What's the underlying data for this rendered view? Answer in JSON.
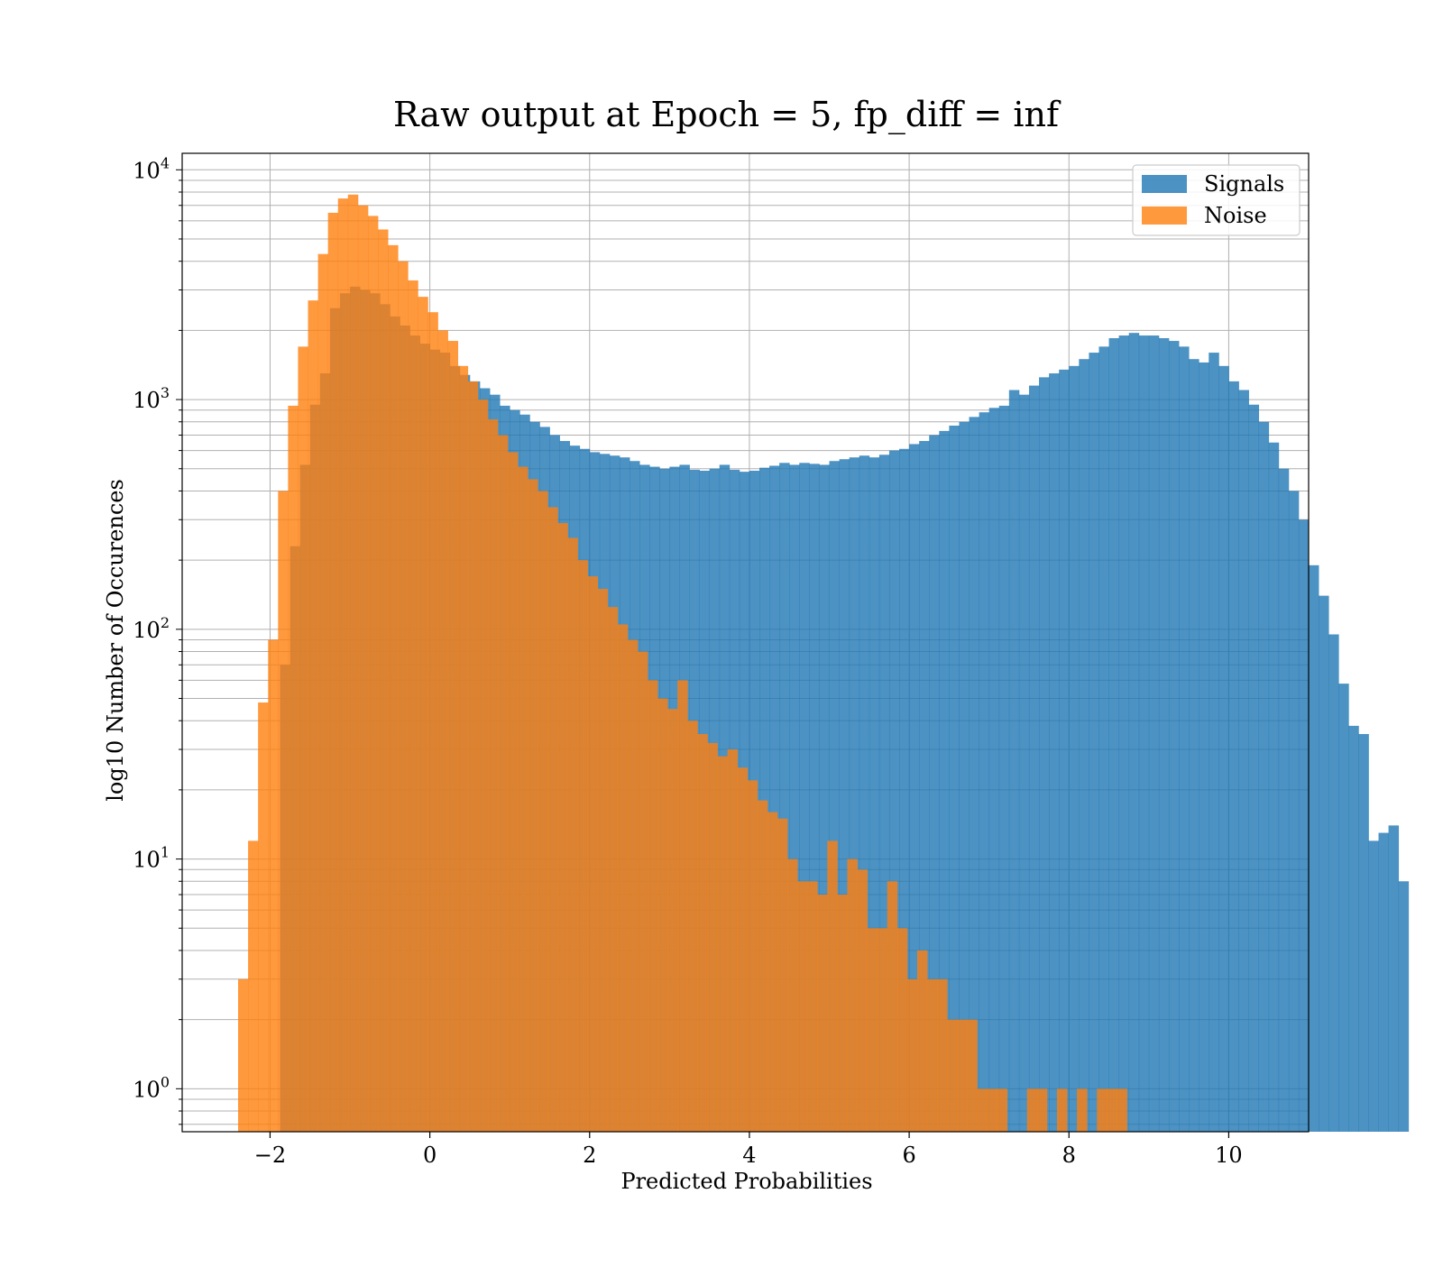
{
  "chart_data": {
    "type": "histogram",
    "title": "Raw output at Epoch = 5, fp_diff = inf",
    "xlabel": "Predicted Probabilities",
    "ylabel": "log10 Number of Occurences",
    "xlim": [
      -3.1,
      11.0
    ],
    "ylim": [
      0.65,
      11800
    ],
    "yscale": "log",
    "grid": true,
    "legend_placement": "top-right",
    "x_ticks": [
      -2,
      0,
      2,
      4,
      6,
      8,
      10
    ],
    "x_tick_labels": [
      "−2",
      "0",
      "2",
      "4",
      "6",
      "8",
      "10"
    ],
    "y_ticks": [
      {
        "value": 1,
        "base": "10",
        "exp": "0"
      },
      {
        "value": 10,
        "base": "10",
        "exp": "1"
      },
      {
        "value": 100,
        "base": "10",
        "exp": "2"
      },
      {
        "value": 1000,
        "base": "10",
        "exp": "3"
      },
      {
        "value": 10000,
        "base": "10",
        "exp": "4"
      }
    ],
    "bin_width": 0.125,
    "series": [
      {
        "name": "Signals",
        "color": "#1f77b4",
        "alpha": 0.8,
        "x_start": -2.25,
        "values": [
          0,
          0,
          0,
          70,
          230,
          520,
          950,
          1300,
          2500,
          2900,
          3100,
          3000,
          2900,
          2600,
          2300,
          2100,
          1900,
          1750,
          1650,
          1600,
          1400,
          1280,
          1200,
          1120,
          1050,
          940,
          900,
          860,
          800,
          760,
          700,
          660,
          630,
          610,
          590,
          580,
          570,
          560,
          540,
          520,
          510,
          500,
          510,
          520,
          495,
          490,
          500,
          520,
          495,
          485,
          490,
          505,
          515,
          530,
          520,
          530,
          525,
          520,
          540,
          550,
          560,
          570,
          560,
          575,
          600,
          610,
          640,
          660,
          700,
          730,
          770,
          800,
          840,
          880,
          920,
          940,
          1100,
          1050,
          1150,
          1250,
          1300,
          1350,
          1400,
          1500,
          1600,
          1700,
          1850,
          1900,
          1950,
          1900,
          1900,
          1850,
          1800,
          1700,
          1500,
          1450,
          1600,
          1400,
          1200,
          1100,
          950,
          800,
          650,
          500,
          400,
          300,
          190,
          140,
          95,
          58,
          38,
          35,
          12,
          13,
          14,
          8
        ]
      },
      {
        "name": "Noise",
        "color": "#ff7f0e",
        "alpha": 0.8,
        "x_start": -2.4,
        "values": [
          3,
          12,
          48,
          90,
          400,
          940,
          1700,
          2700,
          4300,
          6500,
          7500,
          7800,
          7000,
          6300,
          5500,
          4700,
          4000,
          3300,
          2800,
          2400,
          2000,
          1800,
          1400,
          1200,
          1000,
          820,
          700,
          590,
          510,
          450,
          400,
          340,
          290,
          250,
          200,
          170,
          150,
          125,
          105,
          90,
          80,
          60,
          50,
          45,
          60,
          40,
          35,
          32,
          28,
          30,
          25,
          22,
          18,
          16,
          15,
          10,
          8,
          8,
          7,
          12,
          7,
          10,
          9,
          5,
          5,
          8,
          5,
          3,
          4,
          3,
          3,
          2,
          2,
          2,
          1,
          1,
          1,
          0,
          0,
          1,
          1,
          0,
          1,
          0,
          1,
          0,
          1,
          1,
          1
        ]
      }
    ],
    "legend": [
      {
        "label": "Signals",
        "color": "#1f77b4"
      },
      {
        "label": "Noise",
        "color": "#ff7f0e"
      }
    ]
  }
}
